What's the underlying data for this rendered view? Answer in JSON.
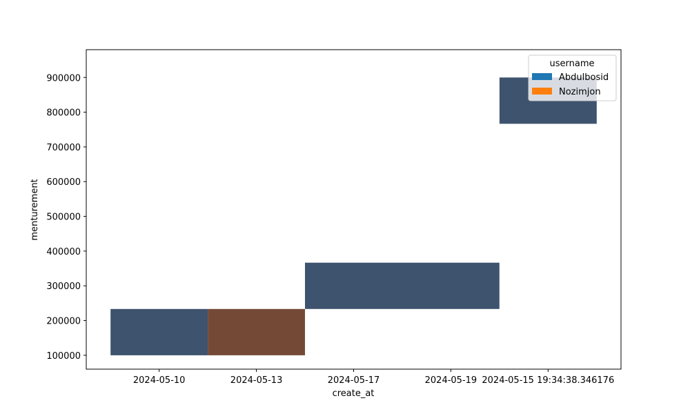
{
  "chart_data": {
    "type": "heatmap",
    "xlabel": "create_at",
    "ylabel": "menturement",
    "x_categories": [
      "2024-05-10",
      "2024-05-13",
      "2024-05-17",
      "2024-05-19",
      "2024-05-15 19:34:38.346176"
    ],
    "y_ticks": [
      100000,
      200000,
      300000,
      400000,
      500000,
      600000,
      700000,
      800000,
      900000
    ],
    "y_tick_labels": [
      "100000",
      "200000",
      "300000",
      "400000",
      "500000",
      "600000",
      "700000",
      "800000",
      "900000"
    ],
    "ylim": [
      60000,
      980000
    ],
    "legend": {
      "title": "username",
      "placement": "top-right",
      "entries": [
        {
          "name": "Abdulbosid",
          "color": "#1f77b4"
        },
        {
          "name": "Nozimjon",
          "color": "#ff7f0e"
        }
      ]
    },
    "cells": [
      {
        "x_from": -0.5,
        "x_to": 0.5,
        "y_from": 100000,
        "y_to": 233333,
        "username": "Abdulbosid",
        "color": "#3e536e"
      },
      {
        "x_from": 0.5,
        "x_to": 1.5,
        "y_from": 100000,
        "y_to": 233333,
        "username": "Nozimjon",
        "color": "#744a36"
      },
      {
        "x_from": 1.5,
        "x_to": 3.5,
        "y_from": 233333,
        "y_to": 366667,
        "username": "Abdulbosid",
        "color": "#3e536e"
      },
      {
        "x_from": 3.5,
        "x_to": 4.5,
        "y_from": 766667,
        "y_to": 900000,
        "username": "Abdulbosid",
        "color": "#3e536e"
      }
    ]
  }
}
